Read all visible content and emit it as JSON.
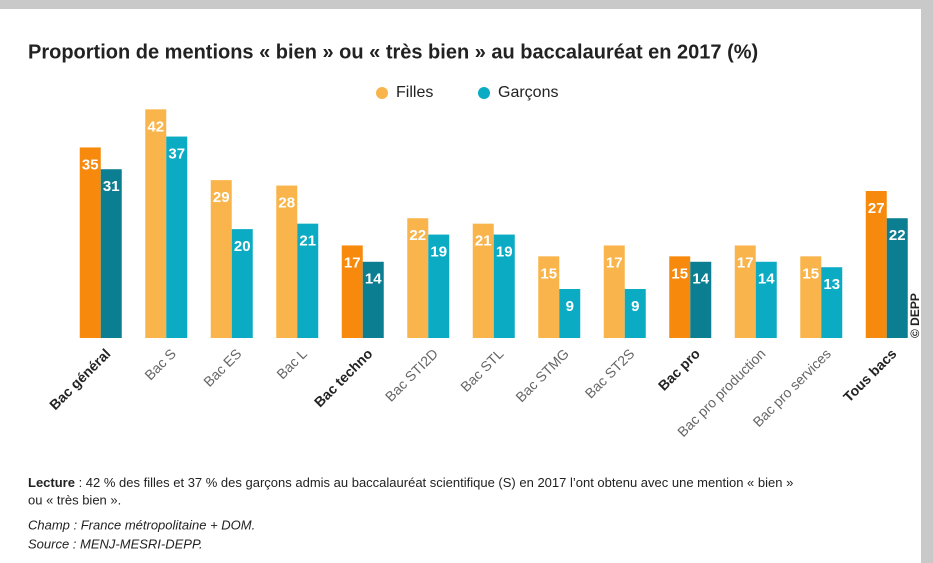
{
  "chart_data": {
    "type": "bar",
    "title": "Proportion de mentions « bien » ou « très bien » au baccalauréat en 2017 (%)",
    "categories": [
      "Bac général",
      "Bac S",
      "Bac ES",
      "Bac L",
      "Bac techno",
      "Bac STI2D",
      "Bac STL",
      "Bac STMG",
      "Bac ST2S",
      "Bac pro",
      "Bac pro production",
      "Bac pro services",
      "Tous bacs"
    ],
    "emphasis": [
      true,
      false,
      false,
      false,
      true,
      false,
      false,
      false,
      false,
      true,
      false,
      false,
      true
    ],
    "series": [
      {
        "name": "Filles",
        "color": "#f9b54c",
        "emphasis_color": "#f7890d",
        "values": [
          35,
          42,
          29,
          28,
          17,
          22,
          21,
          15,
          17,
          15,
          17,
          15,
          27
        ]
      },
      {
        "name": "Garçons",
        "color": "#0babc4",
        "emphasis_color": "#0b7f91",
        "values": [
          31,
          37,
          20,
          21,
          14,
          19,
          19,
          9,
          9,
          14,
          14,
          13,
          22
        ]
      }
    ],
    "ylim": [
      0,
      45
    ],
    "legend": "top",
    "credit": "© DEPP",
    "notes": {
      "lecture_label": "Lecture",
      "lecture_lines": [
        " : 42 % des filles et 37 % des garçons admis au baccalauréat scientifique (S) en 2017 l’ont obtenu avec une mention « bien »",
        "ou « très bien »."
      ],
      "champ": "Champ : France métropolitaine + DOM.",
      "source": "Source : MENJ-MESRI-DEPP."
    }
  }
}
